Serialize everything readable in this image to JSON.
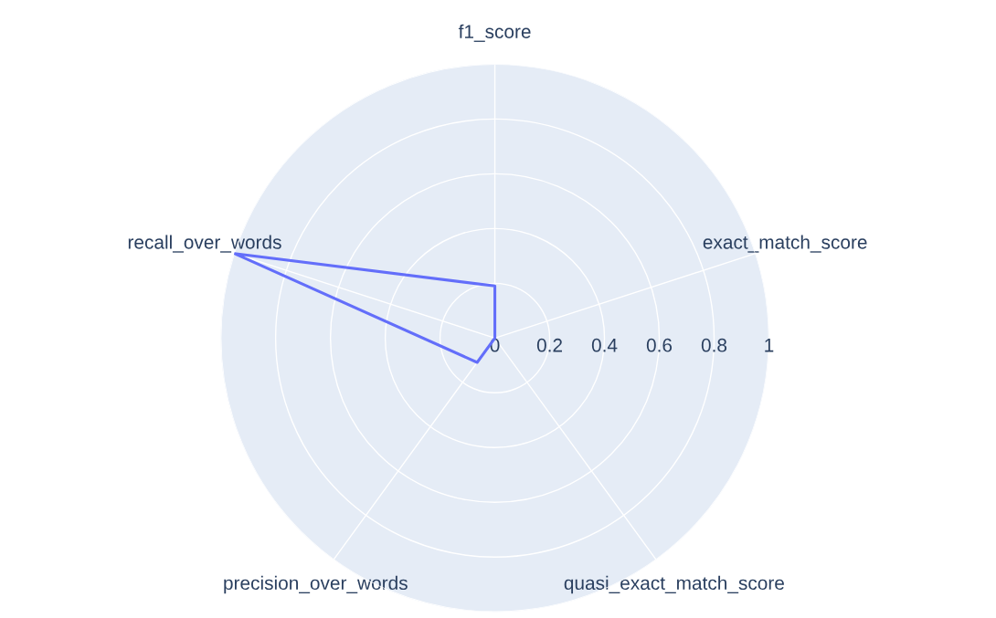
{
  "chart_data": {
    "type": "radar",
    "categories": [
      "f1_score",
      "exact_match_score",
      "quasi_exact_match_score",
      "precision_over_words",
      "recall_over_words"
    ],
    "series": [
      {
        "color": "#636efa",
        "values": [
          0.19,
          0,
          0,
          0.11,
          1.0
        ]
      }
    ],
    "ylim": [
      0,
      1
    ],
    "yticks": [
      0,
      0.2,
      0.4,
      0.6,
      0.8,
      1
    ],
    "grid": true
  }
}
